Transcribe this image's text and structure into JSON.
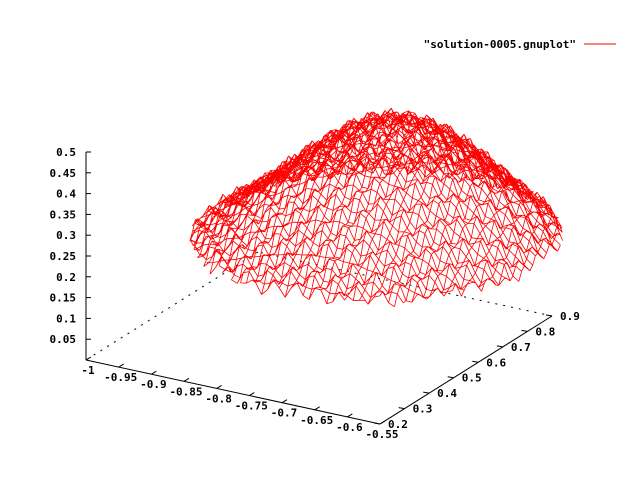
{
  "chart_data": {
    "type": "surface",
    "title": "",
    "xlabel": "",
    "ylabel": "",
    "zlabel": "",
    "xlim": [
      -1,
      -0.55
    ],
    "ylim": [
      0.2,
      0.9
    ],
    "zlim": [
      0,
      0.5
    ],
    "x_ticks": [
      "-1",
      "-0.95",
      "-0.9",
      "-0.85",
      "-0.8",
      "-0.75",
      "-0.7",
      "-0.65",
      "-0.6",
      "-0.55"
    ],
    "y_ticks": [
      "0.2",
      "0.3",
      "0.4",
      "0.5",
      "0.6",
      "0.7",
      "0.8",
      "0.9"
    ],
    "z_ticks": [
      "0.05",
      "0.1",
      "0.15",
      "0.2",
      "0.25",
      "0.3",
      "0.35",
      "0.4",
      "0.45",
      "0.5"
    ],
    "grid": false,
    "legend_position": "top-right",
    "series": [
      {
        "name": "\"solution-0005.gnuplot\"",
        "color": "#ff0000",
        "style": "wireframe mesh",
        "approx_z_range": [
          0.1,
          0.5
        ]
      }
    ]
  },
  "colors": {
    "series": "#ff0000",
    "axes": "#000000",
    "background": "#ffffff"
  }
}
